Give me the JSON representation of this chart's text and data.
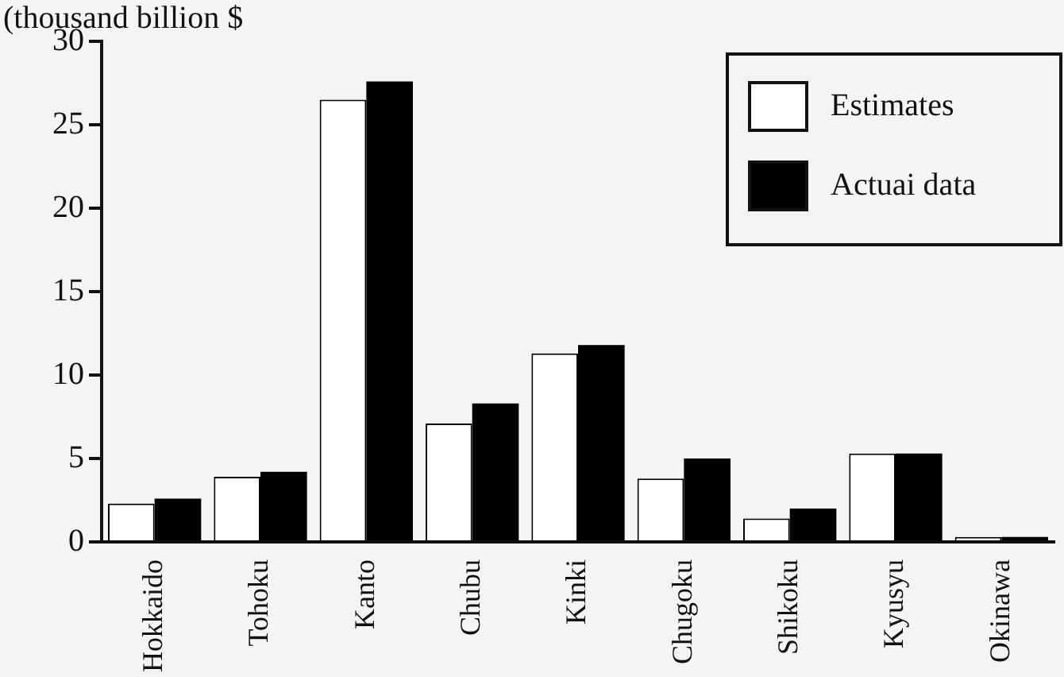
{
  "chart_data": {
    "type": "bar",
    "ylabel": "(thousand billion $",
    "categories": [
      "Hokkaido",
      "Tohoku",
      "Kanto",
      "Chubu",
      "Kinki",
      "Chugoku",
      "Shikoku",
      "Kyusyu",
      "Okinawa"
    ],
    "series": [
      {
        "name": "Estimates",
        "color": "#ffffff",
        "values": [
          2.3,
          3.9,
          26.5,
          7.1,
          11.3,
          3.8,
          1.4,
          5.3,
          0.3
        ]
      },
      {
        "name": "Actuai data",
        "color": "#000000",
        "values": [
          2.6,
          4.2,
          27.6,
          8.3,
          11.8,
          5.0,
          2.0,
          5.3,
          0.3
        ]
      }
    ],
    "ylim": [
      0,
      30
    ],
    "yticks": [
      0,
      5,
      10,
      15,
      20,
      25,
      30
    ],
    "grid": false,
    "legend": "top right"
  }
}
